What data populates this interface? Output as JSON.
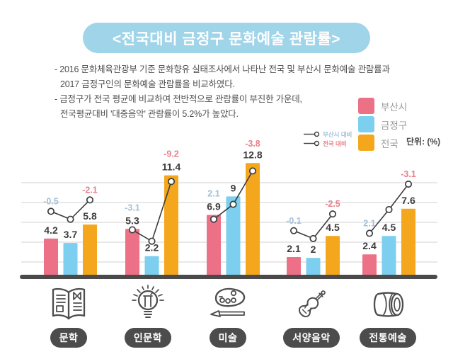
{
  "header": {
    "title": "<전국대비 금정구 문화예술 관람률>"
  },
  "description": {
    "lines": [
      "- 2016 문화체육관광부 기준 문화향유 실태조사에서 나타난 전국 및 부산시 문화예술 관람률과",
      "2017 금정구인의 문화예술 관람률을 비교하였다.",
      "- 금정구가 전국 평균에 비교하여 전반적으로 관람률이 부진한 가운데,",
      "전국평균대비 '대중음악' 관람률이 5.2%가 높았다."
    ]
  },
  "legend": {
    "items": [
      {
        "label": "부산시",
        "color": "#ec7187"
      },
      {
        "label": "금정구",
        "color": "#7ccfee"
      },
      {
        "label": "전국",
        "color": "#f4a71d"
      }
    ],
    "unit_label": "단위: (%)"
  },
  "line_legend": {
    "items": [
      {
        "label": "부산시 대비"
      },
      {
        "label": "전국 대비"
      }
    ]
  },
  "colors": {
    "title_pill": "#a0d4e8",
    "category_pill": "#4c4c4c",
    "baseline": "#4a4a4a",
    "gridline": "#d9d9d9",
    "value_label": "#3d3d3d"
  },
  "chart_data": {
    "type": "bar",
    "title": "<전국대비 금정구 문화예술 관람률>",
    "unit": "%",
    "ylim": [
      0,
      14
    ],
    "grid": true,
    "legend_position": "top-right",
    "categories": [
      "문학",
      "인문학",
      "미술",
      "서양음악",
      "전통예술"
    ],
    "category_icons": [
      "book-icon",
      "lightbulb-icon",
      "palette-icon",
      "violin-icon",
      "drum-icon"
    ],
    "series": [
      {
        "name": "부산시",
        "color": "#ec7187",
        "values": [
          4.2,
          5.3,
          6.9,
          2.1,
          2.4
        ],
        "labels": [
          "4.2",
          "5.3",
          "6.9",
          "2.1",
          "2.4"
        ]
      },
      {
        "name": "금정구",
        "color": "#7ccfee",
        "values": [
          3.7,
          2.2,
          9,
          2,
          4.5
        ],
        "labels": [
          "3.7",
          "2.2",
          "9",
          "2",
          "4.5"
        ]
      },
      {
        "name": "전국",
        "color": "#f4a71d",
        "values": [
          5.8,
          11.4,
          12.8,
          4.5,
          7.6
        ],
        "labels": [
          "5.8",
          "11.4",
          "12.8",
          "4.5",
          "7.6"
        ]
      }
    ],
    "diff_lines": [
      {
        "name": "부산시 대비",
        "label_color": "#a3c0da",
        "values": [
          -0.5,
          -3.1,
          2.1,
          -0.1,
          2.1
        ],
        "labels": [
          "-0.5",
          "-3.1",
          "2.1",
          "-0.1",
          "2.1"
        ]
      },
      {
        "name": "전국 대비",
        "label_color": "#e8808b",
        "values": [
          -2.1,
          -9.2,
          -3.8,
          -2.5,
          -3.1
        ],
        "labels": [
          "-2.1",
          "-9.2",
          "-3.8",
          "-2.5",
          "-3.1"
        ]
      }
    ]
  }
}
